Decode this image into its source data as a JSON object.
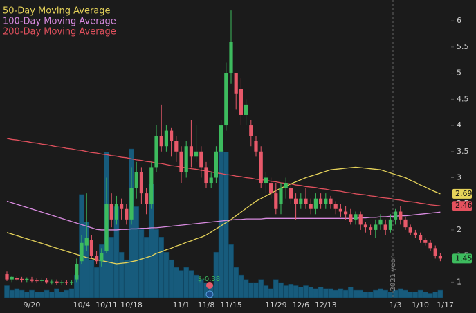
{
  "chart_data": {
    "type": "candlestick",
    "categories": [
      null,
      null,
      null,
      null,
      null,
      "9/20",
      null,
      null,
      null,
      null,
      null,
      null,
      null,
      null,
      null,
      "10/4",
      null,
      null,
      null,
      null,
      "10/11",
      null,
      null,
      null,
      null,
      "10/18",
      null,
      null,
      null,
      null,
      null,
      null,
      null,
      null,
      null,
      "11/1",
      null,
      null,
      null,
      null,
      "11/8",
      null,
      null,
      null,
      null,
      "11/15",
      null,
      null,
      null,
      null,
      null,
      null,
      null,
      null,
      "11/29",
      null,
      null,
      null,
      null,
      "12/6",
      null,
      null,
      null,
      null,
      "12/13",
      null,
      null,
      null,
      null,
      null,
      null,
      null,
      null,
      null,
      null,
      null,
      null,
      null,
      "1/3",
      null,
      null,
      null,
      null,
      "1/10",
      null,
      null,
      null,
      null,
      "1/17"
    ],
    "open": [
      1.15,
      1.05,
      1.08,
      1.06,
      1.04,
      1.05,
      1.03,
      1.02,
      1.03,
      1.0,
      1.01,
      0.99,
      1.0,
      0.98,
      1.05,
      1.4,
      1.7,
      1.8,
      1.5,
      1.4,
      1.6,
      2.5,
      2.2,
      2.5,
      2.4,
      2.2,
      2.8,
      3.1,
      2.7,
      2.5,
      3.2,
      3.8,
      3.6,
      3.9,
      3.7,
      3.5,
      3.1,
      3.6,
      3.4,
      3.5,
      3.2,
      2.9,
      3.0,
      3.5,
      4.0,
      5.0,
      5.0,
      4.7,
      4.2,
      4.0,
      3.7,
      3.5,
      2.9,
      2.9,
      2.7,
      2.5,
      2.8,
      2.8,
      2.6,
      2.5,
      2.6,
      2.5,
      2.4,
      2.6,
      2.5,
      2.6,
      2.5,
      2.4,
      2.35,
      2.3,
      2.2,
      2.3,
      2.1,
      2.05,
      2.0,
      2.1,
      2.1,
      2.0,
      2.2,
      2.35,
      2.2,
      2.05,
      1.95,
      1.9,
      1.8,
      1.75,
      1.65,
      1.5,
      null
    ],
    "high": [
      1.2,
      1.12,
      1.12,
      1.1,
      1.09,
      1.1,
      1.07,
      1.08,
      1.07,
      1.05,
      1.05,
      1.03,
      1.04,
      1.03,
      1.45,
      1.9,
      2.7,
      1.9,
      1.6,
      1.65,
      3.0,
      2.7,
      2.65,
      2.6,
      2.5,
      3.2,
      3.3,
      3.2,
      2.8,
      3.3,
      4.0,
      4.4,
      4.0,
      3.95,
      3.8,
      3.6,
      3.7,
      4.1,
      4.0,
      3.6,
      3.3,
      3.1,
      3.6,
      4.1,
      5.2,
      6.2,
      5.0,
      4.9,
      4.5,
      4.1,
      3.8,
      3.6,
      3.1,
      3.0,
      2.9,
      2.9,
      3.0,
      2.9,
      2.7,
      2.7,
      2.8,
      2.6,
      2.7,
      2.7,
      2.7,
      2.65,
      2.55,
      2.5,
      2.45,
      2.4,
      2.35,
      2.35,
      2.15,
      2.1,
      2.2,
      2.3,
      2.2,
      2.3,
      2.4,
      2.45,
      2.25,
      2.1,
      2.0,
      1.95,
      1.85,
      1.8,
      1.7,
      1.55,
      null
    ],
    "low": [
      1.02,
      1.0,
      1.02,
      1.0,
      1.0,
      1.0,
      0.99,
      0.98,
      0.97,
      0.96,
      0.95,
      0.95,
      0.95,
      0.94,
      1.0,
      1.35,
      1.6,
      1.45,
      1.35,
      1.3,
      1.55,
      2.05,
      2.1,
      2.2,
      2.1,
      2.1,
      2.6,
      2.5,
      2.3,
      2.4,
      3.1,
      3.5,
      3.5,
      3.4,
      3.3,
      2.9,
      3.0,
      3.2,
      3.3,
      3.0,
      2.8,
      2.8,
      2.9,
      3.5,
      3.9,
      4.8,
      4.3,
      4.0,
      4.0,
      3.6,
      3.4,
      2.8,
      2.7,
      2.6,
      2.3,
      2.3,
      2.6,
      2.5,
      2.2,
      2.4,
      2.4,
      2.3,
      2.3,
      2.4,
      2.4,
      2.4,
      2.3,
      2.25,
      2.2,
      2.1,
      2.1,
      2.0,
      1.95,
      1.9,
      1.85,
      2.0,
      1.9,
      1.95,
      2.1,
      2.1,
      2.0,
      1.9,
      1.85,
      1.75,
      1.7,
      1.6,
      1.45,
      1.4,
      null
    ],
    "close": [
      1.05,
      1.1,
      1.05,
      1.04,
      1.06,
      1.02,
      1.02,
      1.04,
      1.0,
      1.01,
      0.99,
      1.0,
      0.98,
      1.0,
      1.35,
      1.75,
      1.85,
      1.5,
      1.4,
      1.55,
      2.5,
      2.2,
      2.5,
      2.4,
      2.2,
      2.8,
      3.1,
      2.7,
      2.5,
      3.2,
      3.8,
      3.6,
      3.9,
      3.7,
      3.5,
      3.1,
      3.6,
      3.4,
      3.5,
      3.2,
      2.9,
      3.0,
      3.5,
      4.0,
      5.0,
      5.6,
      4.6,
      4.2,
      4.4,
      3.8,
      3.5,
      2.9,
      3.0,
      2.7,
      2.4,
      2.8,
      2.9,
      2.6,
      2.5,
      2.6,
      2.5,
      2.4,
      2.6,
      2.5,
      2.6,
      2.5,
      2.4,
      2.35,
      2.3,
      2.15,
      2.3,
      2.1,
      2.05,
      2.0,
      2.1,
      2.2,
      2.0,
      2.2,
      2.35,
      2.2,
      2.05,
      1.95,
      1.9,
      1.8,
      1.75,
      1.65,
      1.5,
      1.45,
      null
    ],
    "volume": [
      8,
      5,
      6,
      5,
      4,
      5,
      4,
      4,
      5,
      4,
      6,
      4,
      5,
      6,
      15,
      68,
      50,
      25,
      20,
      35,
      96,
      40,
      60,
      30,
      25,
      98,
      60,
      45,
      40,
      75,
      45,
      40,
      30,
      25,
      20,
      18,
      20,
      18,
      15,
      12,
      10,
      8,
      30,
      97,
      96,
      35,
      20,
      15,
      12,
      10,
      10,
      12,
      8,
      6,
      12,
      10,
      8,
      9,
      8,
      7,
      8,
      7,
      6,
      7,
      6,
      6,
      5,
      6,
      5,
      7,
      5,
      5,
      4,
      4,
      5,
      6,
      5,
      4,
      5,
      6,
      5,
      4,
      4,
      5,
      4,
      3,
      4,
      5,
      null
    ],
    "up_color": "#3dbb5e",
    "down_color": "#e8596a",
    "volume_color": "#175b7c",
    "series": [
      {
        "name": "50-Day Moving Average",
        "color": "#e6d35a",
        "values": [
          1.95,
          1.92,
          1.89,
          1.86,
          1.83,
          1.8,
          1.77,
          1.74,
          1.71,
          1.68,
          1.65,
          1.62,
          1.59,
          1.56,
          1.53,
          1.5,
          1.47,
          1.45,
          1.43,
          1.41,
          1.39,
          1.37,
          1.35,
          1.36,
          1.37,
          1.39,
          1.41,
          1.44,
          1.47,
          1.5,
          1.55,
          1.58,
          1.62,
          1.65,
          1.69,
          1.72,
          1.76,
          1.79,
          1.83,
          1.86,
          1.9,
          1.96,
          2.02,
          2.08,
          2.14,
          2.2,
          2.27,
          2.34,
          2.41,
          2.48,
          2.55,
          2.6,
          2.65,
          2.7,
          2.75,
          2.8,
          2.84,
          2.88,
          2.92,
          2.96,
          3.0,
          3.03,
          3.06,
          3.09,
          3.12,
          3.15,
          3.16,
          3.17,
          3.18,
          3.19,
          3.2,
          3.19,
          3.18,
          3.17,
          3.16,
          3.15,
          3.12,
          3.09,
          3.06,
          3.03,
          3.0,
          2.95,
          2.91,
          2.86,
          2.82,
          2.77,
          2.73,
          2.69,
          null
        ]
      },
      {
        "name": "100-Day Moving Average",
        "color": "#d98be0",
        "values": [
          2.55,
          2.52,
          2.49,
          2.46,
          2.43,
          2.4,
          2.37,
          2.34,
          2.31,
          2.28,
          2.25,
          2.22,
          2.19,
          2.16,
          2.13,
          2.1,
          2.07,
          2.04,
          2.01,
          2.0,
          2.0,
          2.0,
          2.0,
          2.01,
          2.01,
          2.02,
          2.02,
          2.03,
          2.03,
          2.04,
          2.04,
          2.05,
          2.06,
          2.07,
          2.08,
          2.09,
          2.1,
          2.11,
          2.12,
          2.13,
          2.14,
          2.15,
          2.16,
          2.17,
          2.18,
          2.19,
          2.2,
          2.2,
          2.21,
          2.21,
          2.21,
          2.21,
          2.22,
          2.22,
          2.22,
          2.22,
          2.22,
          2.22,
          2.22,
          2.22,
          2.22,
          2.22,
          2.22,
          2.22,
          2.22,
          2.22,
          2.22,
          2.22,
          2.22,
          2.22,
          2.22,
          2.23,
          2.23,
          2.24,
          2.24,
          2.25,
          2.25,
          2.26,
          2.26,
          2.27,
          2.27,
          2.28,
          2.29,
          2.3,
          2.31,
          2.32,
          2.33,
          2.34,
          null
        ]
      },
      {
        "name": "200-Day Moving Average",
        "color": "#e3515e",
        "values": [
          3.75,
          3.73,
          3.72,
          3.7,
          3.69,
          3.67,
          3.66,
          3.64,
          3.63,
          3.61,
          3.59,
          3.58,
          3.56,
          3.55,
          3.53,
          3.52,
          3.5,
          3.48,
          3.47,
          3.45,
          3.44,
          3.42,
          3.41,
          3.39,
          3.38,
          3.36,
          3.34,
          3.33,
          3.31,
          3.3,
          3.28,
          3.27,
          3.25,
          3.23,
          3.22,
          3.2,
          3.19,
          3.17,
          3.16,
          3.14,
          3.13,
          3.11,
          3.09,
          3.08,
          3.06,
          3.05,
          3.03,
          3.02,
          3.0,
          2.99,
          2.97,
          2.96,
          2.95,
          2.93,
          2.92,
          2.9,
          2.89,
          2.88,
          2.86,
          2.85,
          2.83,
          2.82,
          2.81,
          2.79,
          2.78,
          2.76,
          2.75,
          2.74,
          2.72,
          2.71,
          2.69,
          2.68,
          2.67,
          2.65,
          2.64,
          2.62,
          2.61,
          2.6,
          2.58,
          2.57,
          2.55,
          2.54,
          2.53,
          2.51,
          2.5,
          2.48,
          2.47,
          2.46,
          null
        ]
      }
    ],
    "ylim": [
      0.7,
      6.4
    ],
    "yticks": [
      1,
      1.5,
      2,
      2.5,
      3,
      3.5,
      4,
      4.5,
      5,
      5.5,
      6
    ],
    "grid": false,
    "annotations": {
      "earnings": "$-0.38",
      "year": "2021 year"
    }
  }
}
